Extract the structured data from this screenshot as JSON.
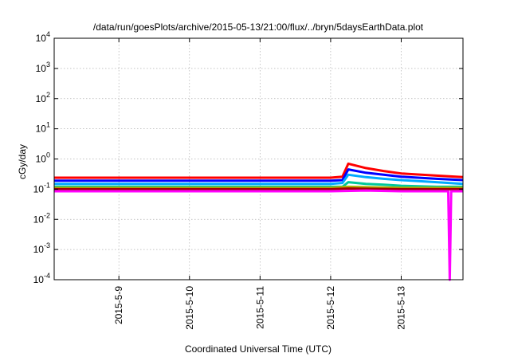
{
  "chart_data": {
    "type": "line",
    "title": "/data/run/goesPlots/archive/2015-05-13/21:00/flux/../bryn/5daysEarthData.plot",
    "xlabel": "Coordinated Universal Time (UTC)",
    "ylabel": "cGy/day",
    "yscale": "log",
    "ylim": [
      0.0001,
      10000
    ],
    "yticks": [
      {
        "base": "10",
        "exp": "-4",
        "value": 0.0001
      },
      {
        "base": "10",
        "exp": "-3",
        "value": 0.001
      },
      {
        "base": "10",
        "exp": "-2",
        "value": 0.01
      },
      {
        "base": "10",
        "exp": "-1",
        "value": 0.1
      },
      {
        "base": "10",
        "exp": "0",
        "value": 1
      },
      {
        "base": "10",
        "exp": "1",
        "value": 10
      },
      {
        "base": "10",
        "exp": "2",
        "value": 100
      },
      {
        "base": "10",
        "exp": "3",
        "value": 1000
      },
      {
        "base": "10",
        "exp": "4",
        "value": 10000
      }
    ],
    "xlim": [
      "2015-05-08 02:00",
      "2015-05-13 21:00"
    ],
    "xticks": [
      {
        "label": "2015-5-9",
        "value": "2015-05-09 00:00"
      },
      {
        "label": "2015-5-10",
        "value": "2015-05-10 00:00"
      },
      {
        "label": "2015-5-11",
        "value": "2015-05-11 00:00"
      },
      {
        "label": "2015-5-12",
        "value": "2015-05-12 00:00"
      },
      {
        "label": "2015-5-13",
        "value": "2015-05-13 00:00"
      }
    ],
    "grid": true,
    "series": [
      {
        "color": "#ff0000",
        "x": [
          "2015-05-08 02:00",
          "2015-05-09 00:00",
          "2015-05-10 00:00",
          "2015-05-11 00:00",
          "2015-05-12 00:00",
          "2015-05-12 04:00",
          "2015-05-12 06:00",
          "2015-05-12 12:00",
          "2015-05-12 18:00",
          "2015-05-13 00:00",
          "2015-05-13 12:00",
          "2015-05-13 21:00"
        ],
        "y": [
          0.24,
          0.24,
          0.24,
          0.24,
          0.24,
          0.26,
          0.7,
          0.5,
          0.4,
          0.33,
          0.28,
          0.25
        ]
      },
      {
        "color": "#0000ff",
        "x": [
          "2015-05-08 02:00",
          "2015-05-09 00:00",
          "2015-05-10 00:00",
          "2015-05-11 00:00",
          "2015-05-12 00:00",
          "2015-05-12 04:00",
          "2015-05-12 06:00",
          "2015-05-12 12:00",
          "2015-05-12 18:00",
          "2015-05-13 00:00",
          "2015-05-13 12:00",
          "2015-05-13 21:00"
        ],
        "y": [
          0.19,
          0.19,
          0.19,
          0.19,
          0.19,
          0.2,
          0.45,
          0.35,
          0.3,
          0.26,
          0.22,
          0.2
        ]
      },
      {
        "color": "#00aaff",
        "x": [
          "2015-05-08 02:00",
          "2015-05-09 00:00",
          "2015-05-10 00:00",
          "2015-05-11 00:00",
          "2015-05-12 00:00",
          "2015-05-12 04:00",
          "2015-05-12 06:00",
          "2015-05-12 12:00",
          "2015-05-12 18:00",
          "2015-05-13 00:00",
          "2015-05-13 12:00",
          "2015-05-13 21:00"
        ],
        "y": [
          0.15,
          0.15,
          0.15,
          0.15,
          0.15,
          0.16,
          0.3,
          0.25,
          0.22,
          0.2,
          0.17,
          0.15
        ]
      },
      {
        "color": "#00c89a",
        "x": [
          "2015-05-08 02:00",
          "2015-05-09 00:00",
          "2015-05-10 00:00",
          "2015-05-11 00:00",
          "2015-05-12 00:00",
          "2015-05-12 04:00",
          "2015-05-12 06:00",
          "2015-05-12 12:00",
          "2015-05-12 18:00",
          "2015-05-13 00:00",
          "2015-05-13 12:00",
          "2015-05-13 21:00"
        ],
        "y": [
          0.12,
          0.12,
          0.12,
          0.12,
          0.12,
          0.12,
          0.17,
          0.15,
          0.14,
          0.13,
          0.12,
          0.12
        ]
      },
      {
        "color": "#b0b000",
        "x": [
          "2015-05-08 02:00",
          "2015-05-09 00:00",
          "2015-05-10 00:00",
          "2015-05-11 00:00",
          "2015-05-12 00:00",
          "2015-05-12 06:00",
          "2015-05-13 00:00",
          "2015-05-13 21:00"
        ],
        "y": [
          0.11,
          0.11,
          0.11,
          0.11,
          0.11,
          0.12,
          0.11,
          0.11
        ]
      },
      {
        "color": "#a00000",
        "x": [
          "2015-05-08 02:00",
          "2015-05-09 00:00",
          "2015-05-10 00:00",
          "2015-05-11 00:00",
          "2015-05-12 00:00",
          "2015-05-12 06:00",
          "2015-05-13 00:00",
          "2015-05-13 21:00"
        ],
        "y": [
          0.1,
          0.1,
          0.1,
          0.1,
          0.1,
          0.105,
          0.1,
          0.1
        ]
      },
      {
        "color": "#ff00ff",
        "x": [
          "2015-05-08 02:00",
          "2015-05-09 00:00",
          "2015-05-10 00:00",
          "2015-05-11 00:00",
          "2015-05-12 00:00",
          "2015-05-12 12:00",
          "2015-05-13 00:00",
          "2015-05-13 16:00",
          "2015-05-13 16:30",
          "2015-05-13 17:00",
          "2015-05-13 21:00"
        ],
        "y": [
          0.085,
          0.085,
          0.085,
          0.085,
          0.085,
          0.09,
          0.085,
          0.085,
          0.0001,
          0.085,
          0.085
        ]
      }
    ]
  }
}
